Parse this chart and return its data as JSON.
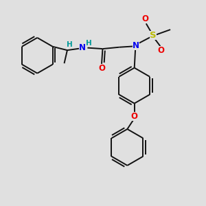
{
  "background_color": "#e0e0e0",
  "bond_color": "#111111",
  "bond_width": 1.4,
  "atom_colors": {
    "N": "#0000ee",
    "O": "#ee0000",
    "S": "#bbbb00",
    "H": "#009999",
    "C": "#111111"
  },
  "fs": 8.5
}
